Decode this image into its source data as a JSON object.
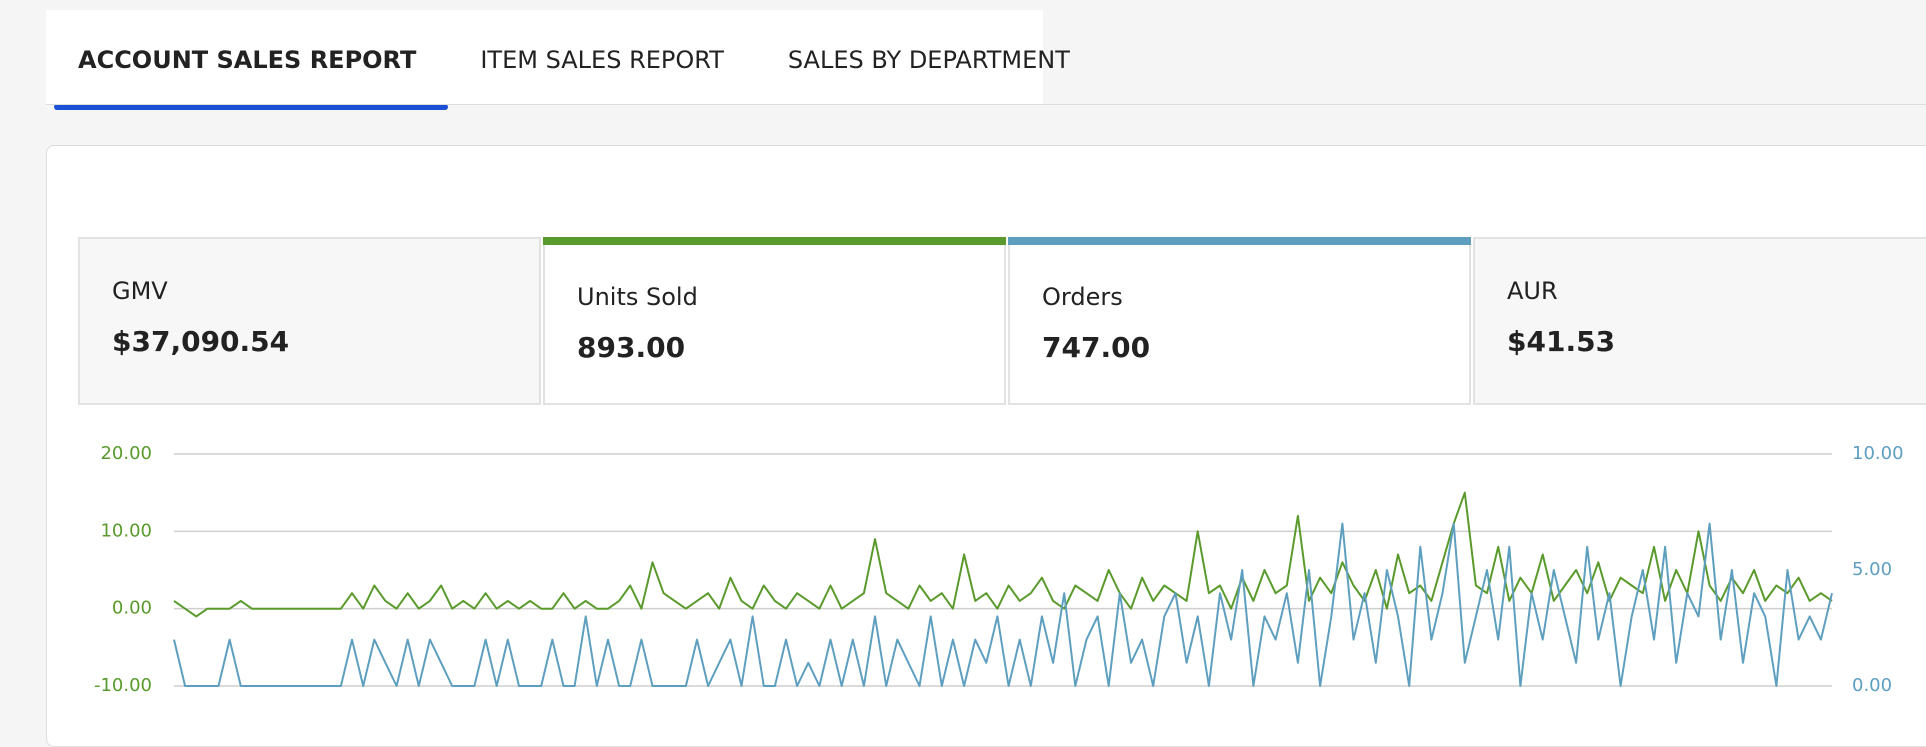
{
  "tabs": [
    "ACCOUNT SALES REPORT",
    "ITEM SALES REPORT",
    "SALES BY DEPARTMENT"
  ],
  "metrics": [
    {
      "label": "GMV",
      "value": "$37,090.54"
    },
    {
      "label": "Units Sold",
      "value": "893.00"
    },
    {
      "label": "Orders",
      "value": "747.00"
    },
    {
      "label": "AUR",
      "value": "$41.53"
    }
  ],
  "chart_data": {
    "type": "line",
    "grid": true,
    "ylim": [
      -10,
      20
    ],
    "yticks": [
      {
        "value": -10,
        "label": "-10.00"
      },
      {
        "value": 0,
        "label": "0.00"
      },
      {
        "value": 10,
        "label": "10.00"
      },
      {
        "value": 20,
        "label": "20.00"
      }
    ],
    "y2lim": [
      0,
      10
    ],
    "y2ticks": [
      {
        "value": 0,
        "label": "0.00"
      },
      {
        "value": 5,
        "label": "5.00"
      },
      {
        "value": 10,
        "label": "10.00"
      }
    ],
    "series": [
      {
        "color": "#5a9a2c",
        "values": [
          1,
          0,
          -1,
          0,
          0,
          0,
          1,
          0,
          0,
          0,
          0,
          0,
          0,
          0,
          0,
          0,
          2,
          0,
          3,
          1,
          0,
          2,
          0,
          1,
          3,
          0,
          1,
          0,
          2,
          0,
          1,
          0,
          1,
          0,
          0,
          2,
          0,
          1,
          0,
          0,
          1,
          3,
          0,
          6,
          2,
          1,
          0,
          1,
          2,
          0,
          4,
          1,
          0,
          3,
          1,
          0,
          2,
          1,
          0,
          3,
          0,
          1,
          2,
          9,
          2,
          1,
          0,
          3,
          1,
          2,
          0,
          7,
          1,
          2,
          0,
          3,
          1,
          2,
          4,
          1,
          0,
          3,
          2,
          1,
          5,
          2,
          0,
          4,
          1,
          3,
          2,
          1,
          10,
          2,
          3,
          0,
          4,
          1,
          5,
          2,
          3,
          12,
          1,
          4,
          2,
          6,
          3,
          1,
          5,
          0,
          7,
          2,
          3,
          1,
          6,
          11,
          15,
          3,
          2,
          8,
          1,
          4,
          2,
          7,
          1,
          3,
          5,
          2,
          6,
          1,
          4,
          3,
          2,
          8,
          1,
          5,
          2,
          10,
          3,
          1,
          4,
          2,
          5,
          1,
          3,
          2,
          4,
          1,
          2,
          1
        ]
      },
      {
        "color": "#5e9fc0",
        "axis": "y2",
        "values": [
          2,
          0,
          0,
          0,
          0,
          2,
          0,
          0,
          0,
          0,
          0,
          0,
          0,
          0,
          0,
          0,
          2,
          0,
          2,
          1,
          0,
          2,
          0,
          2,
          1,
          0,
          0,
          0,
          2,
          0,
          2,
          0,
          0,
          0,
          2,
          0,
          0,
          3,
          0,
          2,
          0,
          0,
          2,
          0,
          0,
          0,
          0,
          2,
          0,
          1,
          2,
          0,
          3,
          0,
          0,
          2,
          0,
          1,
          0,
          2,
          0,
          2,
          0,
          3,
          0,
          2,
          1,
          0,
          3,
          0,
          2,
          0,
          2,
          1,
          3,
          0,
          2,
          0,
          3,
          1,
          4,
          0,
          2,
          3,
          0,
          4,
          1,
          2,
          0,
          3,
          4,
          1,
          3,
          0,
          4,
          2,
          5,
          0,
          3,
          2,
          4,
          1,
          5,
          0,
          3,
          7,
          2,
          4,
          1,
          5,
          3,
          0,
          6,
          2,
          4,
          7,
          1,
          3,
          5,
          2,
          6,
          0,
          4,
          2,
          5,
          3,
          1,
          6,
          2,
          4,
          0,
          3,
          5,
          2,
          6,
          1,
          4,
          3,
          7,
          2,
          5,
          1,
          4,
          3,
          0,
          5,
          2,
          3,
          2,
          4
        ]
      }
    ]
  }
}
